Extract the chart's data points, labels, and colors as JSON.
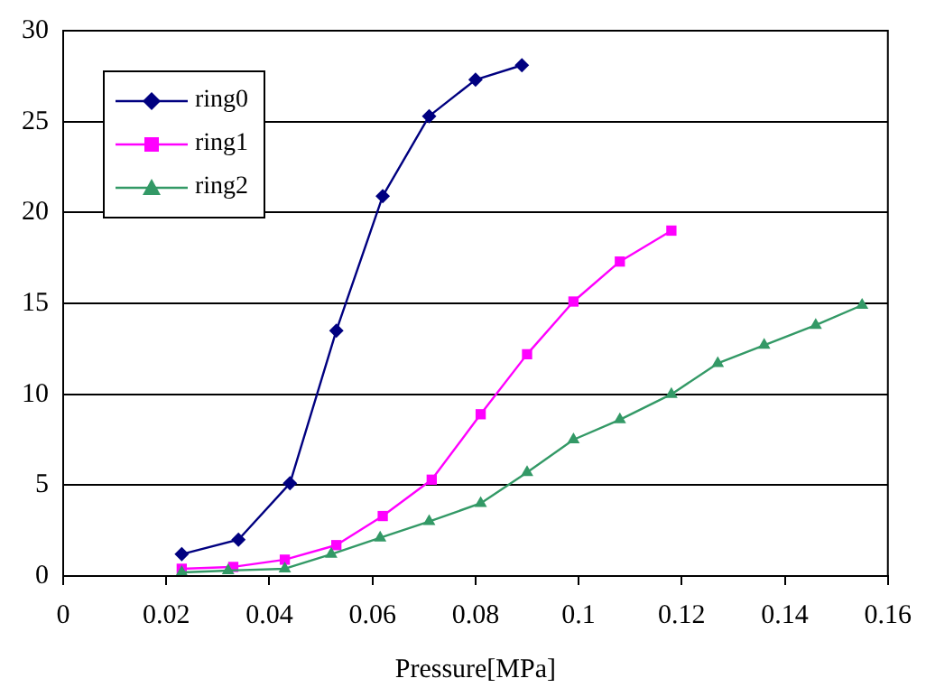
{
  "chart_data": {
    "type": "line",
    "xlabel": "Pressure[MPa]",
    "xlim": [
      0,
      0.16
    ],
    "xticks": [
      0,
      0.02,
      0.04,
      0.06,
      0.08,
      0.1,
      0.12,
      0.14,
      0.16
    ],
    "ylim": [
      0,
      30
    ],
    "yticks": [
      0,
      5,
      10,
      15,
      20,
      25,
      30
    ],
    "grid": "y",
    "legend": "top left",
    "line_style": "solid",
    "series": [
      {
        "name": "ring0",
        "color": "#000080",
        "marker": "diamond",
        "x": [
          0.023,
          0.034,
          0.044,
          0.053,
          0.062,
          0.071,
          0.08,
          0.089
        ],
        "values": [
          1.2,
          2.0,
          5.1,
          13.5,
          20.9,
          25.3,
          27.3,
          28.1
        ]
      },
      {
        "name": "ring1",
        "color": "#ff00ff",
        "marker": "square",
        "x": [
          0.023,
          0.033,
          0.043,
          0.053,
          0.062,
          0.0715,
          0.081,
          0.09,
          0.099,
          0.108,
          0.118
        ],
        "values": [
          0.4,
          0.5,
          0.9,
          1.7,
          3.3,
          5.3,
          8.9,
          12.2,
          15.1,
          17.3,
          19.0
        ]
      },
      {
        "name": "ring2",
        "color": "#339966",
        "marker": "triangle",
        "x": [
          0.023,
          0.032,
          0.043,
          0.052,
          0.0615,
          0.071,
          0.081,
          0.09,
          0.099,
          0.108,
          0.118,
          0.127,
          0.136,
          0.146,
          0.155
        ],
        "values": [
          0.2,
          0.3,
          0.4,
          1.2,
          2.1,
          3.0,
          4.0,
          5.7,
          7.5,
          8.6,
          10.0,
          11.7,
          12.7,
          13.8,
          14.9
        ]
      }
    ]
  }
}
